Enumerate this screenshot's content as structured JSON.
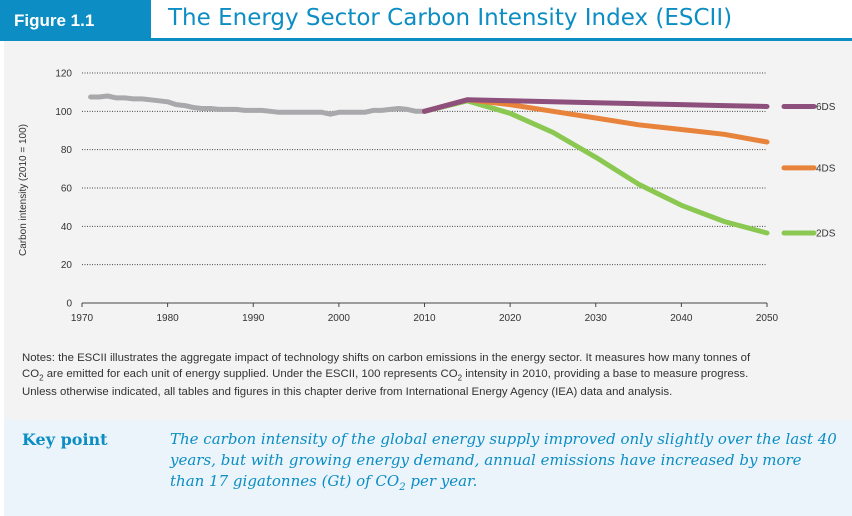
{
  "header": {
    "figure_label": "Figure 1.1",
    "title": "The Energy Sector Carbon Intensity Index (ESCII)"
  },
  "colors": {
    "brand": "#0c8dc4",
    "historical": "#a9a9ac",
    "s6DS": "#8d4f7c",
    "s4DS": "#e8833c",
    "s2DS": "#8ac852"
  },
  "chart_data": {
    "type": "line",
    "ylabel": "Carbon intensity (2010 = 100)",
    "xlabel": "",
    "xlim": [
      1970,
      2050
    ],
    "ylim": [
      0,
      120
    ],
    "x_ticks": [
      "1970",
      "1980",
      "1990",
      "2000",
      "2010",
      "2020",
      "2030",
      "2040",
      "2050"
    ],
    "y_ticks": [
      "0",
      "20",
      "40",
      "60",
      "80",
      "100",
      "120"
    ],
    "grid": "dotted horizontal",
    "legend": "right",
    "series": [
      {
        "key": "historical",
        "x": [
          1971,
          1972,
          1973,
          1974,
          1975,
          1976,
          1977,
          1978,
          1979,
          1980,
          1981,
          1982,
          1983,
          1984,
          1985,
          1986,
          1987,
          1988,
          1989,
          1990,
          1991,
          1992,
          1993,
          1994,
          1995,
          1996,
          1997,
          1998,
          1999,
          2000,
          2001,
          2002,
          2003,
          2004,
          2005,
          2006,
          2007,
          2008,
          2009,
          2010
        ],
        "values": [
          107.5,
          107.5,
          108,
          107,
          107,
          106.5,
          106.5,
          106,
          105.5,
          105,
          103.5,
          103,
          102,
          101.5,
          101.5,
          101,
          101,
          101,
          100.5,
          100.5,
          100.5,
          100,
          99.5,
          99.5,
          99.5,
          99.5,
          99.5,
          99.5,
          98.5,
          99.5,
          99.5,
          99.5,
          99.5,
          100.5,
          100.5,
          101,
          101.5,
          101,
          100,
          100
        ]
      },
      {
        "key": "s6DS",
        "name": "6DS",
        "x": [
          2010,
          2015,
          2020,
          2025,
          2030,
          2035,
          2040,
          2045,
          2050
        ],
        "values": [
          100,
          106,
          105.5,
          105,
          104.5,
          104,
          103.5,
          103,
          102.5
        ]
      },
      {
        "key": "s4DS",
        "name": "4DS",
        "x": [
          2010,
          2015,
          2020,
          2025,
          2030,
          2035,
          2040,
          2045,
          2050
        ],
        "values": [
          100,
          106,
          103.5,
          100,
          96.5,
          93,
          90.5,
          88,
          84
        ]
      },
      {
        "key": "s2DS",
        "name": "2DS",
        "x": [
          2010,
          2015,
          2020,
          2025,
          2030,
          2035,
          2040,
          2045,
          2050
        ],
        "values": [
          100,
          105.5,
          99,
          89,
          76,
          62,
          51,
          42.5,
          36.5
        ]
      }
    ]
  },
  "notes": {
    "line1": "Notes: the ESCII illustrates the aggregate impact of technology shifts on carbon emissions in the energy sector. It measures how many tonnes of",
    "line2_a": "CO",
    "line2_sub": "2",
    "line2_b": " are emitted for each unit of energy supplied. Under the ESCII, 100 represents CO",
    "line2_sub2": "2",
    "line2_c": " intensity in 2010, providing a base to measure progress.",
    "line3": "Unless otherwise indicated, all tables and figures in this chapter derive from International Energy Agency (IEA) data and analysis."
  },
  "key_point": {
    "label": "Key point",
    "text_a": "The carbon intensity of the global energy supply improved only slightly over the last 40 years, but with growing energy demand, annual emissions have increased by more than 17 gigatonnes (Gt) of CO",
    "text_sub": "2",
    "text_b": " per year."
  }
}
